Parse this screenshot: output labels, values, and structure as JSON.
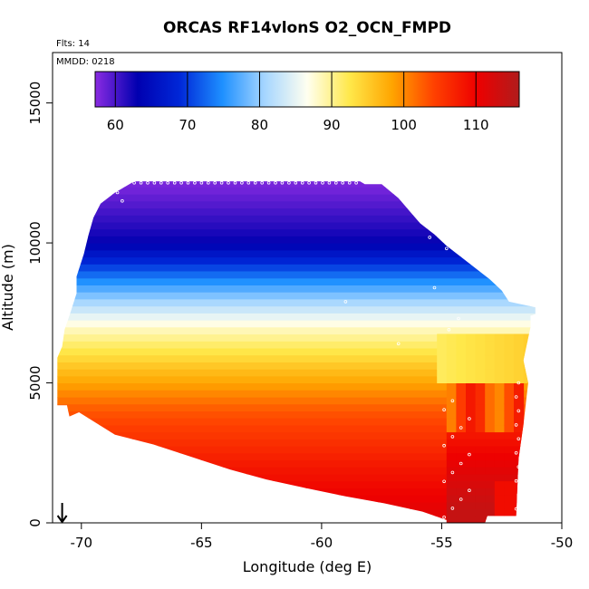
{
  "chart_data": {
    "type": "heatmap",
    "title": "ORCAS RF14vlonS O2_OCN_FMPD",
    "flights_label": "Flts: 14",
    "date_label": "MMDD: 0218",
    "xlabel": "Longitude (deg E)",
    "ylabel": "Altitude (m)",
    "xlim": [
      -71.2,
      -50
    ],
    "ylim": [
      0,
      16800
    ],
    "xticks": [
      -70,
      -65,
      -60,
      -55,
      -50
    ],
    "yticks": [
      0,
      5000,
      10000,
      15000
    ],
    "colorbar": {
      "min": 57.2,
      "max": 116,
      "ticks": [
        60,
        70,
        80,
        90,
        100,
        110
      ],
      "colors": [
        "#8a2be2",
        "#0000b0",
        "#0028d8",
        "#1e90ff",
        "#a6d6ff",
        "#fffff0",
        "#ffe84a",
        "#ffa500",
        "#ff4000",
        "#ee0000",
        "#b01c1c"
      ]
    },
    "field": {
      "value_at_top": 60,
      "value_at_bottom": 111,
      "top_altitude": 12200,
      "bottom_altitude": 0,
      "description_series": [
        {
          "altitude": 12000,
          "value": 58
        },
        {
          "altitude": 10000,
          "value": 63
        },
        {
          "altitude": 8500,
          "value": 76
        },
        {
          "altitude": 7000,
          "value": 88
        },
        {
          "altitude": 5500,
          "value": 96
        },
        {
          "altitude": 4000,
          "value": 103
        },
        {
          "altitude": 2000,
          "value": 108
        },
        {
          "altitude": 500,
          "value": 111
        }
      ]
    },
    "arrow_longitude": -70.8
  }
}
